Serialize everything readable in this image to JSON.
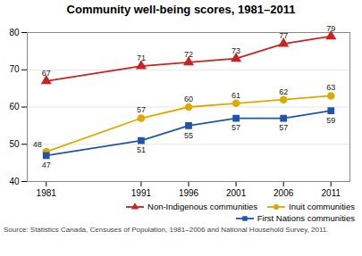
{
  "chart_data": {
    "type": "line",
    "title": "Community well-being scores, 1981–2011",
    "annotations": [
      "Source: Statistics Canada, Censuses of Population, 1981–2006 and National Household Survey, 2011."
    ],
    "x": [
      1981,
      1991,
      1996,
      2001,
      2006,
      2011
    ],
    "xlim": [
      1979,
      2013
    ],
    "xticks": [
      1981,
      1991,
      1996,
      2001,
      2006,
      2011
    ],
    "ylim": [
      40,
      80
    ],
    "yticks": [
      40,
      50,
      60,
      70,
      80
    ],
    "grid": true,
    "legend": "lower right",
    "data_labels": true,
    "series": [
      {
        "name": "Non-Indigenous communities",
        "color": "#cc2222",
        "marker": "triangle",
        "values": [
          67,
          71,
          72,
          73,
          77,
          79
        ]
      },
      {
        "name": "Inuit communities",
        "color": "#ddaa00",
        "marker": "circle",
        "values": [
          48,
          57,
          60,
          61,
          62,
          63
        ]
      },
      {
        "name": "First Nations communities",
        "color": "#2255aa",
        "marker": "square",
        "values": [
          47,
          51,
          55,
          57,
          57,
          59
        ]
      }
    ]
  }
}
